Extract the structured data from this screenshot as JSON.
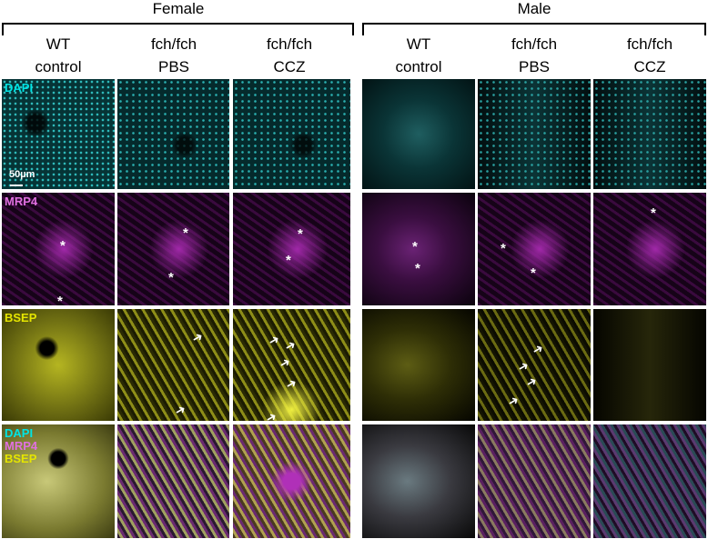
{
  "groups": [
    {
      "label": "Female"
    },
    {
      "label": "Male"
    }
  ],
  "columns": [
    {
      "line1": "WT",
      "line2": "control"
    },
    {
      "line1": "fch/fch",
      "line2": "PBS"
    },
    {
      "line1": "fch/fch",
      "line2": "CCZ"
    },
    {
      "line1": "WT",
      "line2": "control"
    },
    {
      "line1": "fch/fch",
      "line2": "PBS"
    },
    {
      "line1": "fch/fch",
      "line2": "CCZ"
    }
  ],
  "rows": [
    {
      "label": "DAPI",
      "color": "#00e5e5"
    },
    {
      "label": "MRP4",
      "color": "#e070e0"
    },
    {
      "label": "BSEP",
      "color": "#e5e500"
    },
    {
      "labels": [
        "DAPI",
        "MRP4",
        "BSEP"
      ],
      "colors": [
        "#00e5e5",
        "#e070e0",
        "#e5e500"
      ]
    }
  ],
  "scale_bar": "50µm",
  "markers": {
    "asterisk": "*",
    "arrow": "➜"
  }
}
